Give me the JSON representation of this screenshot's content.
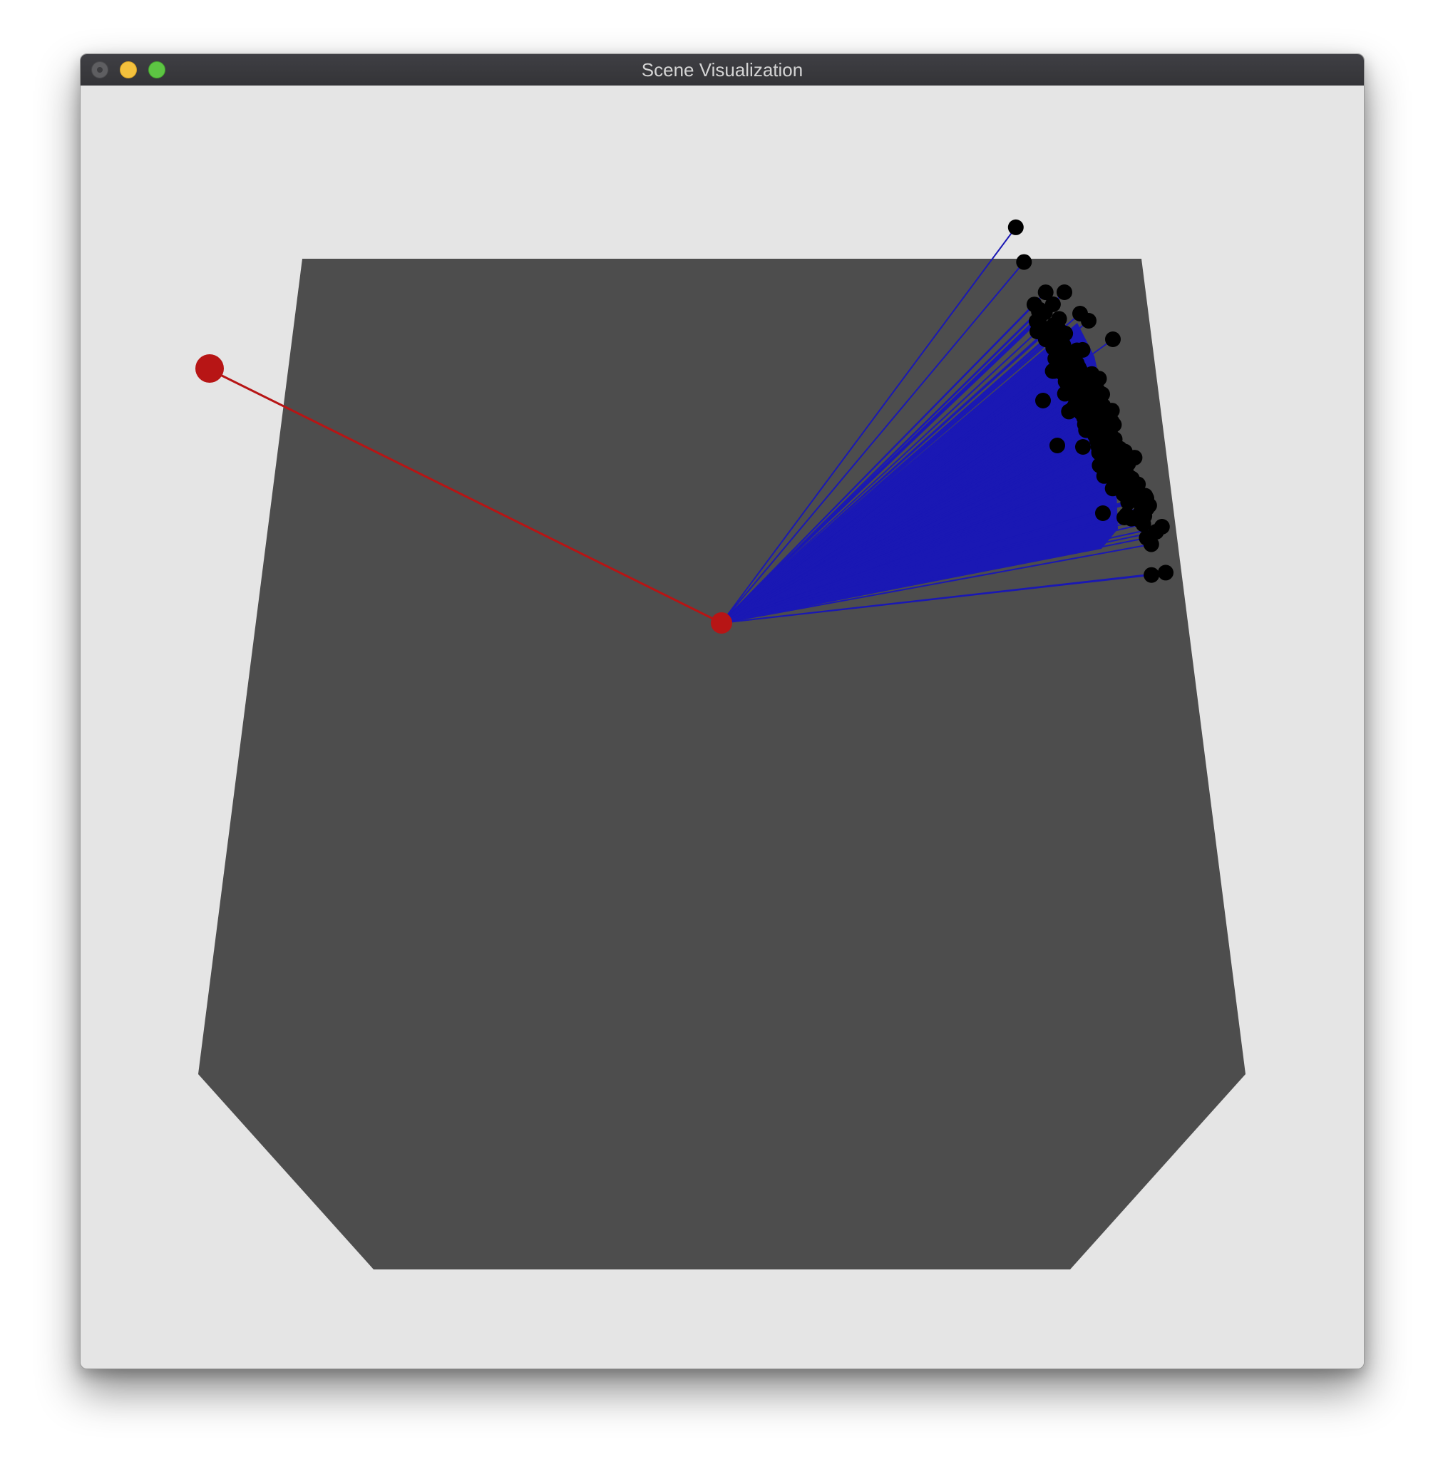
{
  "window": {
    "title": "Scene Visualization"
  },
  "colors": {
    "background": "#e5e5e5",
    "region_fill": "#4d4d4d",
    "agent": "#b71515",
    "target": "#b71515",
    "agent_link": "#b71515",
    "rays": "#1a18b4",
    "particles": "#000000"
  },
  "icons": {
    "close": "close-dot-icon",
    "minimize": "minimize-dot-icon",
    "maximize": "maximize-dot-icon"
  }
}
